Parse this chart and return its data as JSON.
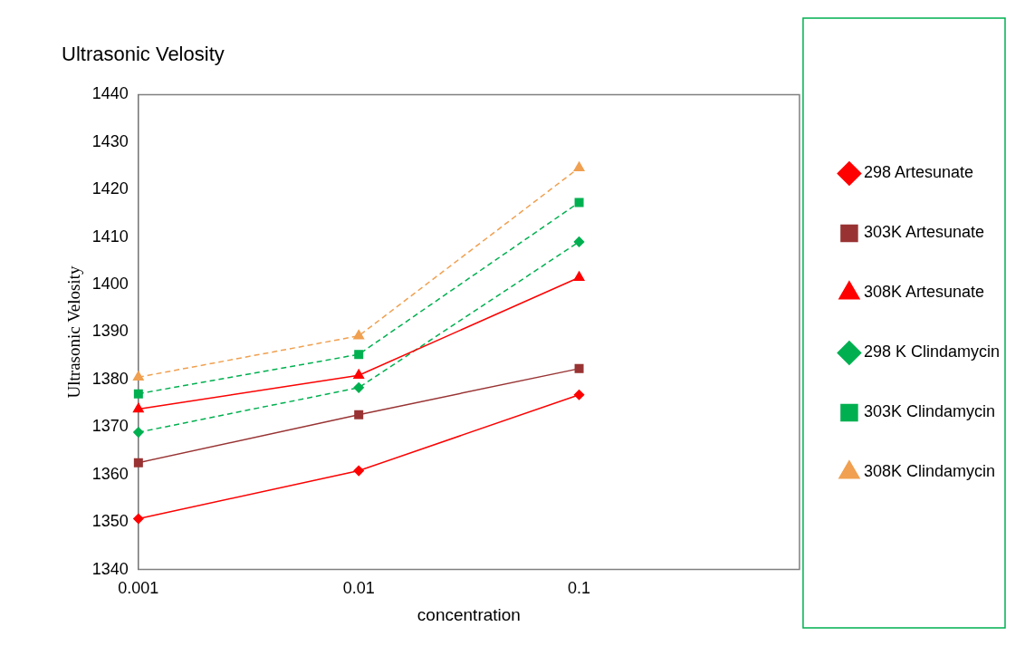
{
  "chart_data": {
    "type": "line",
    "title": "Ultrasonic Velosity",
    "xlabel": "concentration",
    "ylabel": "Ultrasonic Velosity",
    "categories": [
      "0.001",
      "0.01",
      "0.1",
      null
    ],
    "ylim": [
      1340,
      1440
    ],
    "yticks": [
      1340,
      1350,
      1360,
      1370,
      1380,
      1390,
      1400,
      1410,
      1420,
      1430,
      1440
    ],
    "grid": false,
    "legend": "right",
    "series": [
      {
        "name": "298 Artesunate",
        "color": "#ff0000",
        "marker": "diamond",
        "line_style": "solid",
        "values": [
          1350.7,
          1360.8,
          1376.8,
          null
        ]
      },
      {
        "name": "303K Artesunate",
        "color": "#993333",
        "marker": "square",
        "line_style": "solid",
        "values": [
          1362.5,
          1372.6,
          1382.3,
          null
        ]
      },
      {
        "name": "308K Artesunate",
        "color": "#ff0000",
        "marker": "triangle",
        "line_style": "solid",
        "values": [
          1373.8,
          1380.9,
          1401.5,
          null
        ]
      },
      {
        "name": "298 K Clindamycin",
        "color": "#00b050",
        "marker": "diamond",
        "line_style": "dashed",
        "values": [
          1368.9,
          1378.3,
          1409.0,
          null
        ]
      },
      {
        "name": "303K Clindamycin",
        "color": "#00b050",
        "marker": "square",
        "line_style": "dashed",
        "values": [
          1377.0,
          1385.3,
          1417.3,
          null
        ]
      },
      {
        "name": "308K Clindamycin",
        "color": "#f0a050",
        "marker": "triangle",
        "line_style": "dashed",
        "values": [
          1380.5,
          1389.2,
          1424.6,
          null
        ]
      }
    ]
  }
}
